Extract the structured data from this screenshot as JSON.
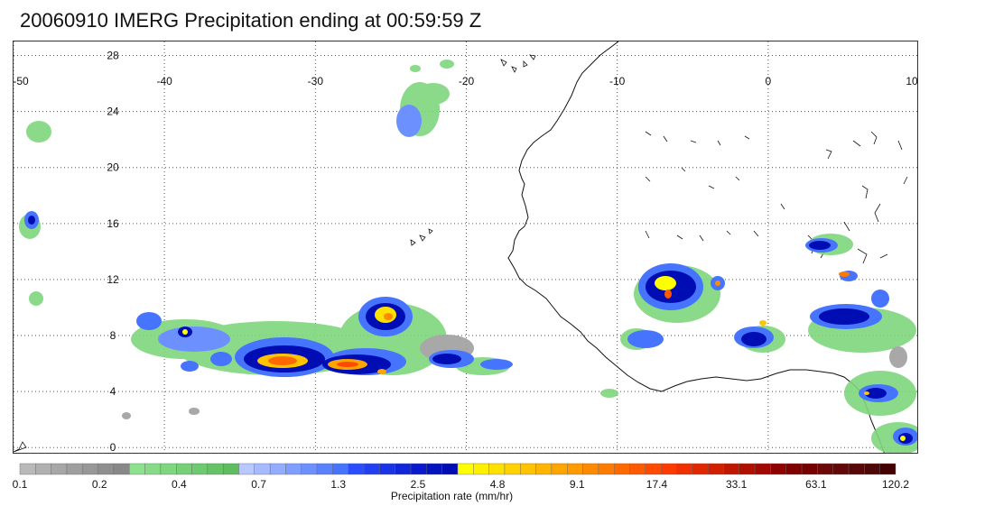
{
  "title": "20060910 IMERG Precipitation ending at 00:59:59 Z",
  "map": {
    "lon_labels": [
      "-50",
      "-40",
      "-30",
      "-20",
      "-10",
      "0",
      "10"
    ],
    "lat_labels": [
      "28",
      "24",
      "20",
      "16",
      "12",
      "8",
      "4",
      "0"
    ],
    "lon_range": [
      -50,
      10
    ],
    "lat_range": [
      -0.5,
      29
    ],
    "grid": "dotted"
  },
  "colorbar": {
    "title": "Precipitation rate (mm/hr)",
    "tick_labels": [
      "0.1",
      "0.2",
      "0.4",
      "0.7",
      "1.3",
      "2.5",
      "4.8",
      "9.1",
      "17.4",
      "33.1",
      "63.1",
      "120.2"
    ],
    "colors": [
      "#b9b9b9",
      "#b0b0b0",
      "#a7a7a7",
      "#9f9f9f",
      "#979797",
      "#8f8f8f",
      "#888888",
      "#8ee28e",
      "#86dc86",
      "#7ed67e",
      "#76d076",
      "#6eca6e",
      "#66c466",
      "#5ebe5e",
      "#b9c8ff",
      "#a6baff",
      "#93acff",
      "#809eff",
      "#6d90ff",
      "#5a82ff",
      "#4774ff",
      "#2b4dff",
      "#2240f2",
      "#1a33e6",
      "#1226d9",
      "#0a1acc",
      "#0414bf",
      "#000db3",
      "#ffff00",
      "#fff000",
      "#ffe100",
      "#ffd200",
      "#ffc300",
      "#ffb400",
      "#ffa500",
      "#ff9a00",
      "#ff8a00",
      "#ff7a00",
      "#ff6a00",
      "#ff5a00",
      "#ff4a00",
      "#ff3a00",
      "#f03000",
      "#e02800",
      "#d02000",
      "#c01800",
      "#b01000",
      "#a00800",
      "#900000",
      "#800000",
      "#760000",
      "#6c0808",
      "#620808",
      "#580808",
      "#4e0808",
      "#440000"
    ]
  }
}
